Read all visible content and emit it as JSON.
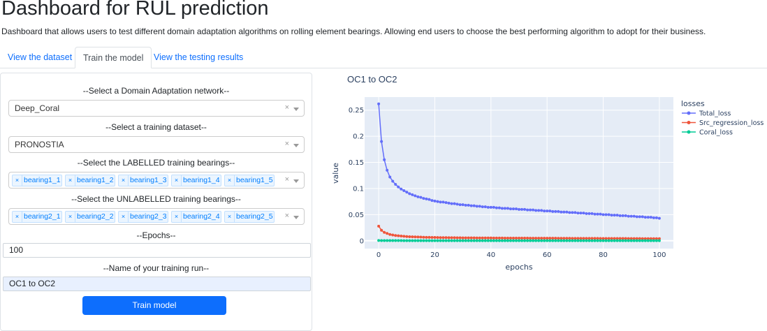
{
  "header": {
    "title": "Dashboard for RUL prediction",
    "description": "Dashboard that allows users to test different domain adaptation algorithms on rolling element bearings. Allowing end users to choose the best performing algorithm to adopt for their business."
  },
  "tabs": [
    {
      "label": "View the dataset",
      "active": false
    },
    {
      "label": "Train the model",
      "active": true
    },
    {
      "label": "View the testing results",
      "active": false
    }
  ],
  "form": {
    "network_label": "--Select a Domain Adaptation network--",
    "network_value": "Deep_Coral",
    "dataset_label": "--Select a training dataset--",
    "dataset_value": "PRONOSTIA",
    "labelled_label": "--Select the LABELLED training bearings--",
    "labelled_values": [
      "bearing1_1",
      "bearing1_2",
      "bearing1_3",
      "bearing1_4",
      "bearing1_5"
    ],
    "unlabelled_label": "--Select the UNLABELLED training bearings--",
    "unlabelled_values": [
      "bearing2_1",
      "bearing2_2",
      "bearing2_3",
      "bearing2_4",
      "bearing2_5"
    ],
    "epochs_label": "--Epochs--",
    "epochs_value": "100",
    "run_name_label": "--Name of your training run--",
    "run_name_value": "OC1 to OC2",
    "train_button": "Train model"
  },
  "icons": {
    "clear": "×",
    "remove_chip": "×",
    "dropdown": "chevron-down-icon"
  },
  "chart_data": {
    "type": "line",
    "title": "OC1 to OC2",
    "xlabel": "epochs",
    "ylabel": "value",
    "legend_title": "losses",
    "legend_placement": "right",
    "xlim": [
      -5,
      105
    ],
    "ylim": [
      -0.015,
      0.275
    ],
    "xticks": [
      "0",
      "20",
      "40",
      "60",
      "80",
      "100"
    ],
    "yticks": [
      "0",
      "0.05",
      "0.1",
      "0.15",
      "0.2",
      "0.25"
    ],
    "grid": true,
    "colors": {
      "Total_loss": "#636efa",
      "Src_regression_loss": "#ef553b",
      "Coral_loss": "#00cc96"
    },
    "background": "#e5ecf6",
    "series": [
      {
        "name": "Total_loss",
        "values": [
          0.262,
          0.19,
          0.155,
          0.135,
          0.122,
          0.114,
          0.108,
          0.103,
          0.099,
          0.096,
          0.093,
          0.09,
          0.088,
          0.086,
          0.084,
          0.083,
          0.081,
          0.08,
          0.079,
          0.077,
          0.076,
          0.075,
          0.074,
          0.074,
          0.073,
          0.072,
          0.071,
          0.071,
          0.07,
          0.069,
          0.069,
          0.068,
          0.068,
          0.067,
          0.067,
          0.066,
          0.066,
          0.065,
          0.065,
          0.064,
          0.064,
          0.064,
          0.063,
          0.063,
          0.062,
          0.062,
          0.062,
          0.061,
          0.061,
          0.061,
          0.06,
          0.06,
          0.06,
          0.059,
          0.059,
          0.059,
          0.058,
          0.058,
          0.058,
          0.057,
          0.057,
          0.057,
          0.056,
          0.056,
          0.056,
          0.055,
          0.055,
          0.055,
          0.054,
          0.054,
          0.054,
          0.053,
          0.053,
          0.053,
          0.052,
          0.052,
          0.052,
          0.051,
          0.051,
          0.051,
          0.05,
          0.05,
          0.05,
          0.049,
          0.049,
          0.049,
          0.048,
          0.048,
          0.048,
          0.047,
          0.047,
          0.047,
          0.046,
          0.046,
          0.046,
          0.045,
          0.045,
          0.045,
          0.044,
          0.044,
          0.043
        ]
      },
      {
        "name": "Src_regression_loss",
        "values": [
          0.028,
          0.02,
          0.016,
          0.014,
          0.012,
          0.011,
          0.01,
          0.0095,
          0.009,
          0.0085,
          0.008,
          0.0078,
          0.0076,
          0.0074,
          0.0072,
          0.007,
          0.0068,
          0.0066,
          0.0065,
          0.0064,
          0.0063,
          0.0062,
          0.0061,
          0.006,
          0.006,
          0.0059,
          0.0058,
          0.0058,
          0.0057,
          0.0057,
          0.0056,
          0.0056,
          0.0055,
          0.0055,
          0.0055,
          0.0054,
          0.0054,
          0.0054,
          0.0053,
          0.0053,
          0.0053,
          0.0052,
          0.0052,
          0.0052,
          0.0052,
          0.0051,
          0.0051,
          0.0051,
          0.0051,
          0.005,
          0.005,
          0.005,
          0.005,
          0.005,
          0.0049,
          0.0049,
          0.0049,
          0.0049,
          0.0049,
          0.0048,
          0.0048,
          0.0048,
          0.0048,
          0.0048,
          0.0047,
          0.0047,
          0.0047,
          0.0047,
          0.0047,
          0.0046,
          0.0046,
          0.0046,
          0.0046,
          0.0046,
          0.0045,
          0.0045,
          0.0045,
          0.0045,
          0.0045,
          0.0044,
          0.0044,
          0.0044,
          0.0044,
          0.0044,
          0.0043,
          0.0043,
          0.0043,
          0.0043,
          0.0043,
          0.0042,
          0.0042,
          0.0042,
          0.0042,
          0.0042,
          0.0041,
          0.0041,
          0.0041,
          0.0041,
          0.0041,
          0.004,
          0.004
        ]
      },
      {
        "name": "Coral_loss",
        "values": [
          0.0005,
          0.0004,
          0.0004,
          0.0003,
          0.0003,
          0.0003,
          0.0003,
          0.0003,
          0.0003,
          0.0002,
          0.0002,
          0.0002,
          0.0002,
          0.0002,
          0.0002,
          0.0002,
          0.0002,
          0.0002,
          0.0002,
          0.0002,
          0.0002,
          0.0002,
          0.0002,
          0.0002,
          0.0002,
          0.0002,
          0.0002,
          0.0002,
          0.0002,
          0.0002,
          0.0002,
          0.0002,
          0.0002,
          0.0002,
          0.0002,
          0.0002,
          0.0002,
          0.0002,
          0.0002,
          0.0002,
          0.0002,
          0.0002,
          0.0002,
          0.0002,
          0.0002,
          0.0002,
          0.0002,
          0.0002,
          0.0002,
          0.0002,
          0.0002,
          0.0002,
          0.0002,
          0.0002,
          0.0002,
          0.0002,
          0.0002,
          0.0002,
          0.0002,
          0.0002,
          0.0002,
          0.0002,
          0.0002,
          0.0002,
          0.0002,
          0.0002,
          0.0002,
          0.0002,
          0.0002,
          0.0002,
          0.0002,
          0.0002,
          0.0002,
          0.0002,
          0.0002,
          0.0002,
          0.0002,
          0.0002,
          0.0002,
          0.0002,
          0.0002,
          0.0002,
          0.0002,
          0.0002,
          0.0002,
          0.0002,
          0.0002,
          0.0002,
          0.0002,
          0.0002,
          0.0002,
          0.0002,
          0.0002,
          0.0002,
          0.0002,
          0.0002,
          0.0002,
          0.0002,
          0.0002,
          0.0002,
          0.0002
        ]
      }
    ]
  }
}
